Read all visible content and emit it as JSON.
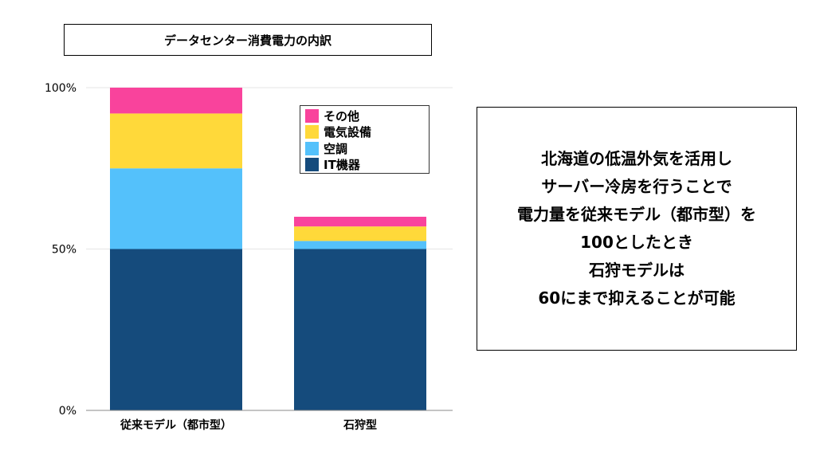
{
  "chart_data": {
    "type": "bar",
    "stacked": true,
    "title": "データセンター消費電力の内訳",
    "categories": [
      "従来モデル（都市型）",
      "石狩型"
    ],
    "series": [
      {
        "name": "IT機器",
        "color": "#154b7c",
        "values": [
          50,
          50
        ]
      },
      {
        "name": "空調",
        "color": "#54c1fb",
        "values": [
          25,
          2.5
        ]
      },
      {
        "name": "電気設備",
        "color": "#ffd93a",
        "values": [
          17,
          4.5
        ]
      },
      {
        "name": "その他",
        "color": "#f9439c",
        "values": [
          8,
          3
        ]
      }
    ],
    "yticks": [
      "0%",
      "50%",
      "100%"
    ],
    "ylim": [
      0,
      100
    ],
    "grid": true,
    "legend": "top-right"
  },
  "note": {
    "lines": [
      "北海道の低温外気を活用し",
      "サーバー冷房を行うことで",
      "電力量を従来モデル（都市型）を",
      "100としたとき",
      "石狩モデルは",
      "60にまで抑えることが可能"
    ]
  }
}
